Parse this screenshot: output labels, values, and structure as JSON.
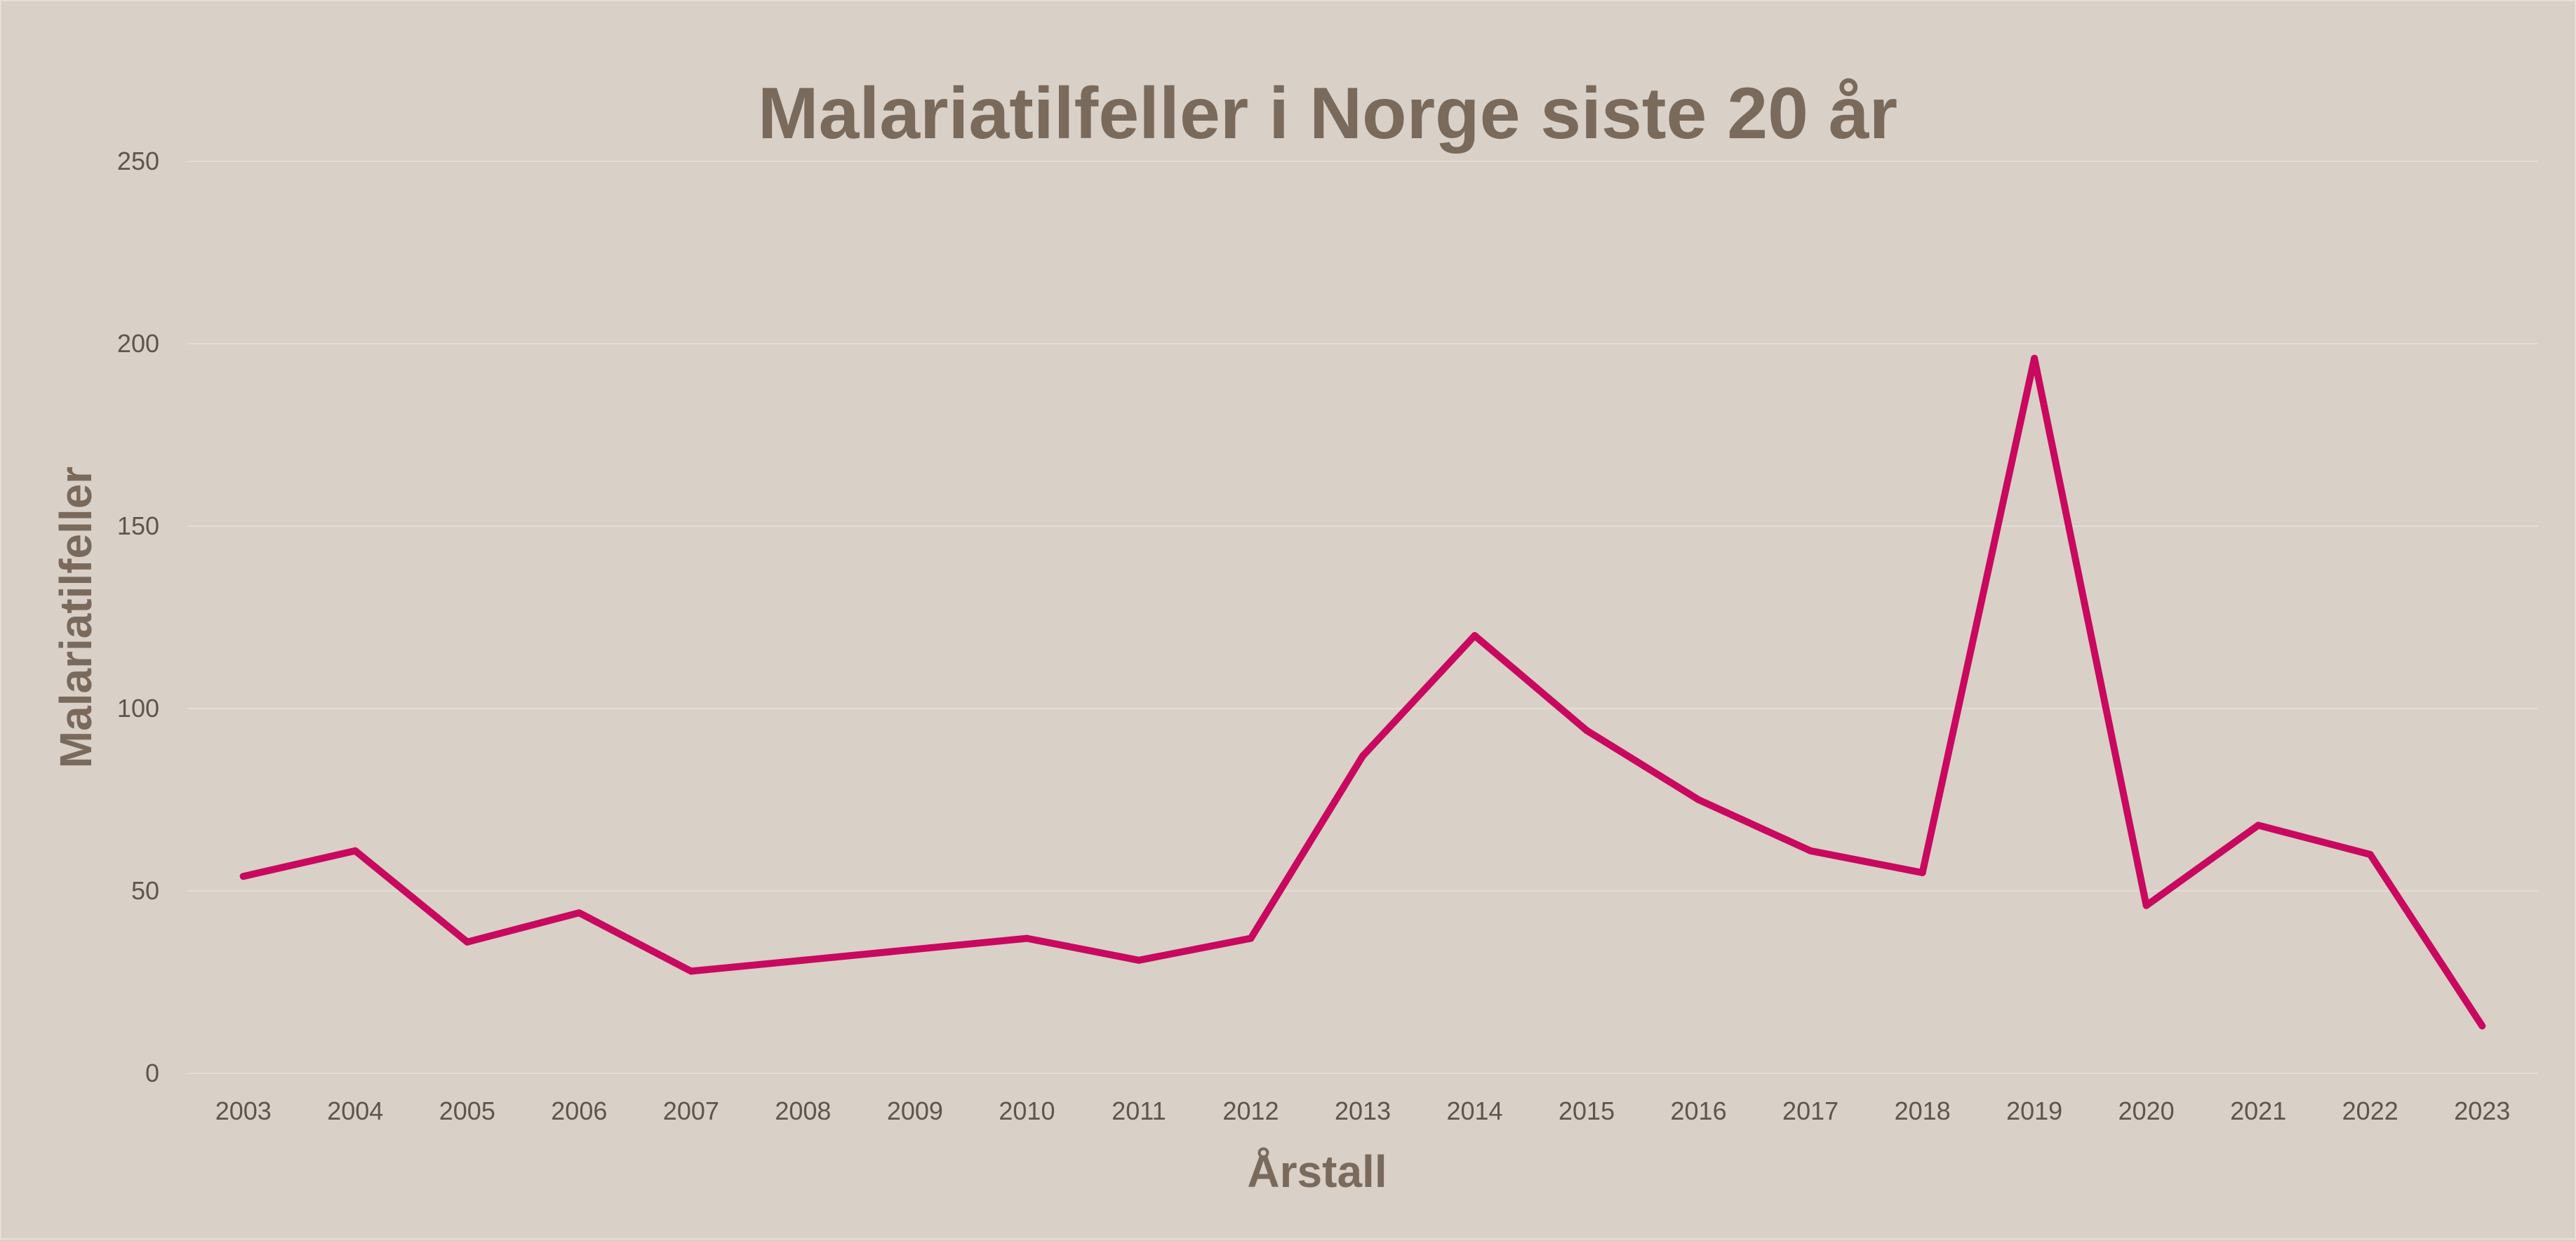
{
  "chart_data": {
    "type": "line",
    "title": "Malariatilfeller i Norge siste 20 år",
    "xlabel": "Årstall",
    "ylabel": "Malariatilfeller",
    "categories": [
      "2003",
      "2004",
      "2005",
      "2006",
      "2007",
      "2008",
      "2009",
      "2010",
      "2011",
      "2012",
      "2013",
      "2014",
      "2015",
      "2016",
      "2017",
      "2018",
      "2019",
      "2020",
      "2021",
      "2022",
      "2023"
    ],
    "yticks": [
      "0",
      "50",
      "100",
      "150",
      "200",
      "250"
    ],
    "ylim": [
      0,
      250
    ],
    "grid": true,
    "legend": "none",
    "series": [
      {
        "color": "#c8095f",
        "values": [
          54,
          61,
          36,
          44,
          28,
          31,
          34,
          37,
          31,
          37,
          87,
          120,
          94,
          75,
          61,
          55,
          196,
          46,
          68,
          60,
          13
        ]
      }
    ]
  }
}
